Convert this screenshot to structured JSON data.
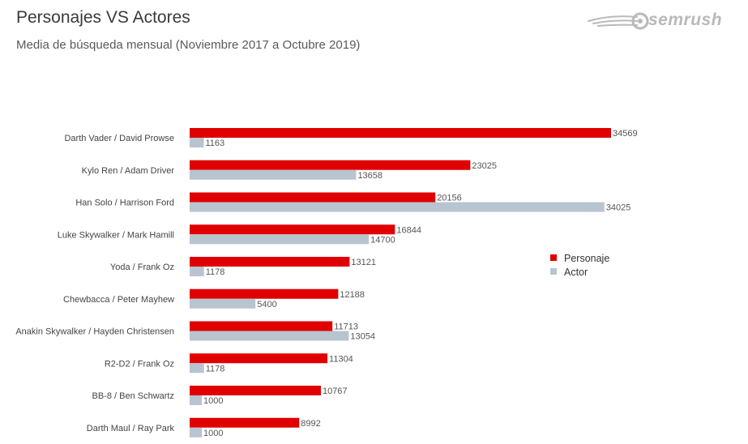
{
  "header": {
    "title": "Personajes VS Actores",
    "subtitle": "Media de búsqueda mensual (Noviembre 2017 a Octubre 2019)",
    "logo_text": "semrush"
  },
  "colors": {
    "personaje": "#e00000",
    "actor": "#b8c4cf",
    "logo": "#b9b9b9"
  },
  "chart_data": {
    "type": "bar",
    "orientation": "horizontal",
    "categories": [
      "Darth Vader / David Prowse",
      "Kylo Ren / Adam Driver",
      "Han Solo / Harrison Ford",
      "Luke Skywalker / Mark Hamill",
      "Yoda / Frank Oz",
      "Chewbacca / Peter Mayhew",
      "Anakin Skywalker / Hayden Christensen",
      "R2-D2 / Frank Oz",
      "BB-8 / Ben Schwartz",
      "Darth Maul / Ray Park"
    ],
    "series": [
      {
        "name": "Personaje",
        "values": [
          34569,
          23025,
          20156,
          16844,
          13121,
          12188,
          11713,
          11304,
          10767,
          8992
        ]
      },
      {
        "name": "Actor",
        "values": [
          1163,
          13658,
          34025,
          14700,
          1178,
          5400,
          13054,
          1178,
          1000,
          1000
        ]
      }
    ],
    "title": "Personajes VS Actores",
    "subtitle": "Media de búsqueda mensual (Noviembre 2017 a Octubre 2019)",
    "xlim": [
      0,
      34569
    ],
    "grid": false,
    "legend_position": "right"
  }
}
